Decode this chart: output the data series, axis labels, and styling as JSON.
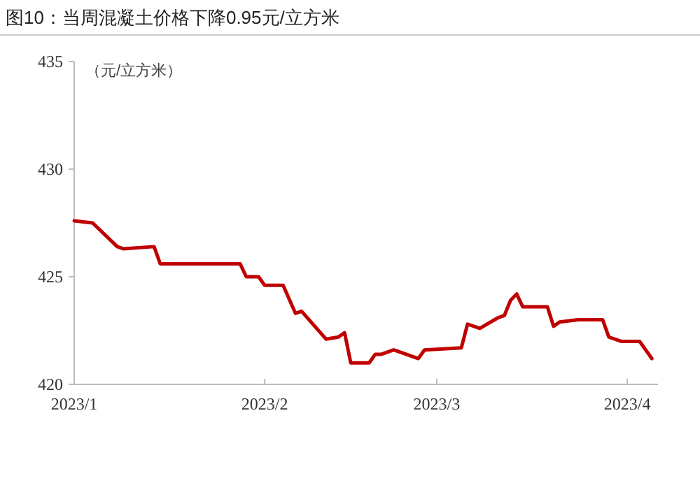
{
  "chart_data": {
    "type": "line",
    "title": "图10：当周混凝土价格下降0.95元/立方米",
    "annotations": [
      "（元/立方米）"
    ],
    "x": [
      "2023-01-01",
      "2023-01-04",
      "2023-01-08",
      "2023-01-09",
      "2023-01-14",
      "2023-01-15",
      "2023-01-28",
      "2023-01-29",
      "2023-01-31",
      "2023-02-01",
      "2023-02-04",
      "2023-02-06",
      "2023-02-07",
      "2023-02-11",
      "2023-02-13",
      "2023-02-14",
      "2023-02-15",
      "2023-02-18",
      "2023-02-19",
      "2023-02-20",
      "2023-02-22",
      "2023-02-26",
      "2023-02-27",
      "2023-03-05",
      "2023-03-06",
      "2023-03-08",
      "2023-03-11",
      "2023-03-12",
      "2023-03-13",
      "2023-03-14",
      "2023-03-15",
      "2023-03-19",
      "2023-03-20",
      "2023-03-21",
      "2023-03-24",
      "2023-03-28",
      "2023-03-29",
      "2023-03-31",
      "2023-04-03",
      "2023-04-05"
    ],
    "series": [
      {
        "color": "#c00000",
        "values": [
          427.6,
          427.5,
          426.4,
          426.3,
          426.4,
          425.6,
          425.6,
          425.0,
          425.0,
          424.6,
          424.6,
          423.3,
          423.4,
          422.1,
          422.2,
          422.4,
          421.0,
          421.0,
          421.4,
          421.4,
          421.6,
          421.2,
          421.6,
          421.7,
          422.8,
          422.6,
          423.1,
          423.2,
          423.9,
          424.2,
          423.6,
          423.6,
          422.7,
          422.9,
          423.0,
          423.0,
          422.2,
          422.0,
          422.0,
          421.2
        ]
      }
    ],
    "xlim": [
      "2023-01-01",
      "2023-04-06"
    ],
    "xticks": [
      {
        "value": "2023-01-01",
        "label": "2023/1"
      },
      {
        "value": "2023-02-01",
        "label": "2023/2"
      },
      {
        "value": "2023-03-01",
        "label": "2023/3"
      },
      {
        "value": "2023-04-01",
        "label": "2023/4"
      }
    ],
    "ylim": [
      420,
      435
    ],
    "yticks": [
      420,
      425,
      430,
      435
    ],
    "grid": false,
    "marker": "none",
    "line_style": "solid"
  }
}
